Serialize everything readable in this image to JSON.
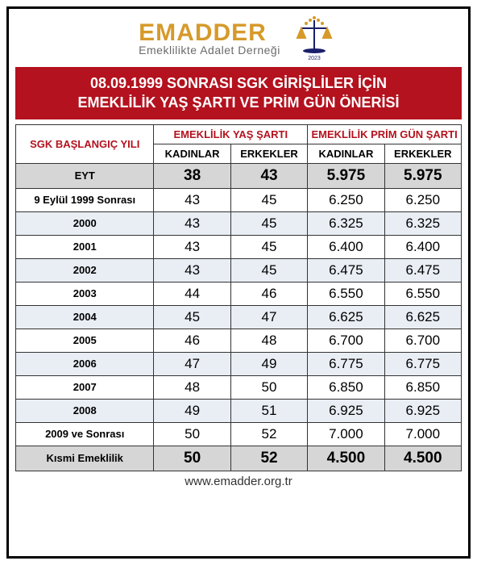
{
  "brand": {
    "name": "EMADDER",
    "name_color": "#d69a2a",
    "subtitle": "Emeklilikte Adalet Derneği",
    "subtitle_color": "#6b6b6b",
    "logo_year": "2023"
  },
  "title": {
    "line1": "08.09.1999 SONRASI SGK GİRİŞLİLER İÇİN",
    "line2": "EMEKLİLİK YAŞ ŞARTI VE PRİM GÜN ÖNERİSİ",
    "bg": "#b3121e",
    "fg": "#ffffff"
  },
  "table": {
    "col_start_label": "SGK BAŞLANGIÇ YILI",
    "group_age_label": "EMEKLİLİK YAŞ ŞARTI",
    "group_days_label": "EMEKLİLİK PRİM GÜN ŞARTI",
    "sub_women": "KADINLAR",
    "sub_men": "ERKEKLER",
    "header_color": "#b3121e",
    "rows": [
      {
        "label": "EYT",
        "age_w": "38",
        "age_m": "43",
        "day_w": "5.975",
        "day_m": "5.975",
        "style": "highlight"
      },
      {
        "label": "9 Eylül 1999 Sonrası",
        "age_w": "43",
        "age_m": "45",
        "day_w": "6.250",
        "day_m": "6.250",
        "style": "plain"
      },
      {
        "label": "2000",
        "age_w": "43",
        "age_m": "45",
        "day_w": "6.325",
        "day_m": "6.325",
        "style": "alt"
      },
      {
        "label": "2001",
        "age_w": "43",
        "age_m": "45",
        "day_w": "6.400",
        "day_m": "6.400",
        "style": "plain"
      },
      {
        "label": "2002",
        "age_w": "43",
        "age_m": "45",
        "day_w": "6.475",
        "day_m": "6.475",
        "style": "alt"
      },
      {
        "label": "2003",
        "age_w": "44",
        "age_m": "46",
        "day_w": "6.550",
        "day_m": "6.550",
        "style": "plain"
      },
      {
        "label": "2004",
        "age_w": "45",
        "age_m": "47",
        "day_w": "6.625",
        "day_m": "6.625",
        "style": "alt"
      },
      {
        "label": "2005",
        "age_w": "46",
        "age_m": "48",
        "day_w": "6.700",
        "day_m": "6.700",
        "style": "plain"
      },
      {
        "label": "2006",
        "age_w": "47",
        "age_m": "49",
        "day_w": "6.775",
        "day_m": "6.775",
        "style": "alt"
      },
      {
        "label": "2007",
        "age_w": "48",
        "age_m": "50",
        "day_w": "6.850",
        "day_m": "6.850",
        "style": "plain"
      },
      {
        "label": "2008",
        "age_w": "49",
        "age_m": "51",
        "day_w": "6.925",
        "day_m": "6.925",
        "style": "alt"
      },
      {
        "label": "2009 ve Sonrası",
        "age_w": "50",
        "age_m": "52",
        "day_w": "7.000",
        "day_m": "7.000",
        "style": "plain"
      },
      {
        "label": "Kısmi Emeklilik",
        "age_w": "50",
        "age_m": "52",
        "day_w": "4.500",
        "day_m": "4.500",
        "style": "highlight"
      }
    ]
  },
  "footer_url": "www.emadder.org.tr",
  "colors": {
    "border": "#333333",
    "row_alt_bg": "#e9eef5",
    "row_highlight_bg": "#d6d6d6"
  }
}
